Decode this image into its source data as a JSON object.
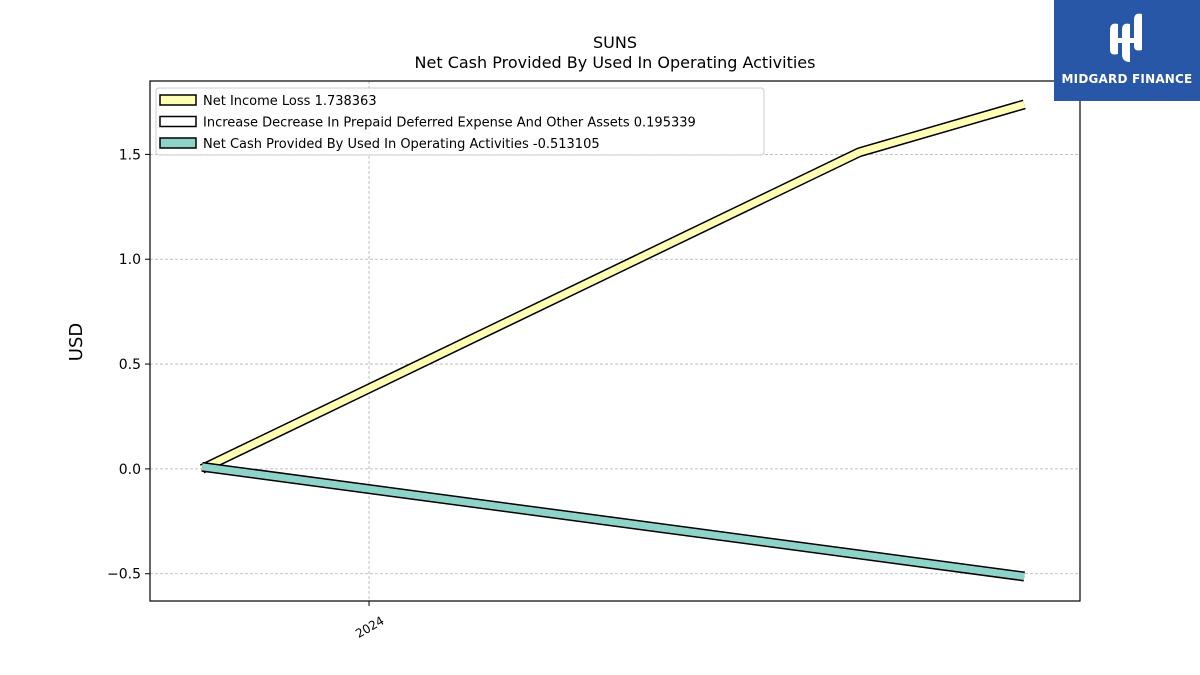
{
  "chart_data": {
    "type": "line",
    "title": "SUNS",
    "subtitle": "Net Cash Provided By Used In Operating Activities",
    "ylabel": "USD",
    "xlabel": "",
    "x_tick_labels": [
      "2024"
    ],
    "y_tick_labels": [
      "−0.5",
      "0.0",
      "0.5",
      "1.0",
      "1.5"
    ],
    "y_ticks": [
      -0.5,
      0.0,
      0.5,
      1.0,
      1.5
    ],
    "ylim": [
      -0.63,
      1.85
    ],
    "grid": true,
    "legend_position": "top-left",
    "series": [
      {
        "name": "Net Income Loss",
        "legend_value": "1.738363",
        "color": "#ffffb3",
        "points": [
          [
            "2023-09-30",
            0.0
          ],
          [
            "2024-09-30",
            1.51
          ],
          [
            "2024-12-31",
            1.738363
          ]
        ]
      },
      {
        "name": "Increase Decrease In Prepaid Deferred Expense And Other Assets",
        "legend_value": "0.195339",
        "color": "#ffffff",
        "points": []
      },
      {
        "name": "Net Cash Provided By Used In Operating Activities",
        "legend_value": "-0.513105",
        "color": "#8dd3c7",
        "points": [
          [
            "2023-09-30",
            0.01
          ],
          [
            "2024-12-31",
            -0.513105
          ]
        ]
      }
    ],
    "x_date_ticks": [
      "2024-01-01"
    ],
    "x_range": [
      "2023-09-01",
      "2025-01-31"
    ]
  },
  "logo": {
    "text": "MIDGARD FINANCE",
    "color": "#2957a8"
  }
}
